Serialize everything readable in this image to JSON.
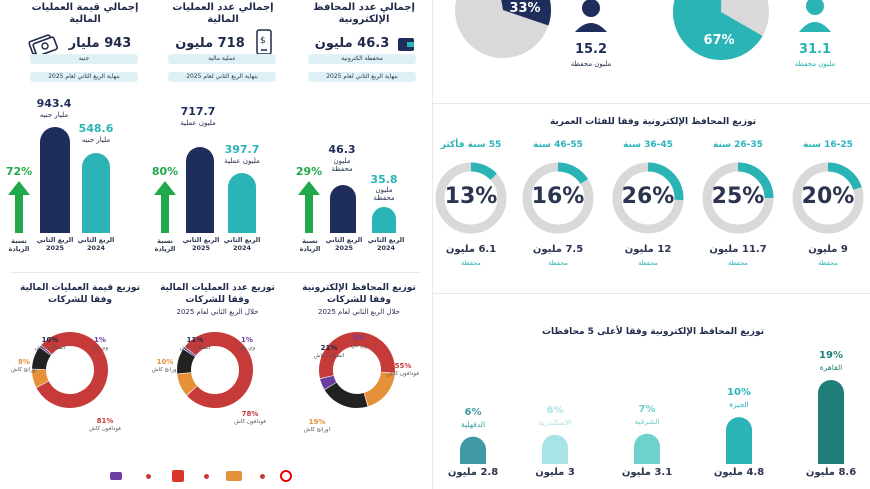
{
  "colors": {
    "navy": "#1f2d5c",
    "teal": "#2bb4b6",
    "green": "#20a84a",
    "red": "#c73a3a",
    "grey": "#d9d9d9",
    "orange": "#e6913a",
    "black": "#222222",
    "purple": "#6a3fa0"
  },
  "left": {
    "kpis": [
      {
        "title": "إجمالي قيمة العمليات المالية",
        "value": "943 مليار",
        "unit": "جنيه",
        "note": "بنهاية الربع الثاني لعام 2025",
        "icon": "money-icon"
      },
      {
        "title": "إجمالي عدد العمليات المالية",
        "value": "718 مليون",
        "unit": "عملية مالية",
        "note": "بنهاية الربع الثاني لعام 2025",
        "icon": "phone-icon"
      },
      {
        "title": "إجمالي عدد المحافظ الإلكترونية",
        "value": "46.3 مليون",
        "unit": "محفظة الكترونية",
        "note": "بنهاية الربع الثاني لعام 2025",
        "icon": "wallet-icon"
      }
    ],
    "growth_label": "نسبة الزيادة",
    "bar_groups": [
      {
        "growth": "72%",
        "q2025_val": "943.4",
        "q2025_unit": "مليار جنيه",
        "q2024_val": "548.6",
        "q2024_unit": "مليار جنيه",
        "q2025_label": "الربع الثاني 2025",
        "q2024_label": "الربع الثاني 2024"
      },
      {
        "growth": "80%",
        "q2025_val": "717.7",
        "q2025_unit": "مليون عملية",
        "q2024_val": "397.7",
        "q2024_unit": "مليون عملية",
        "q2025_label": "الربع الثاني 2025",
        "q2024_label": "الربع الثاني 2024"
      },
      {
        "growth": "29%",
        "q2025_val": "46.3",
        "q2025_unit": "مليون محفظة",
        "q2024_val": "35.8",
        "q2024_unit": "مليون محفظة",
        "q2025_label": "الربع الثاني 2025",
        "q2024_label": "الربع الثاني 2024"
      }
    ],
    "donuts": [
      {
        "title": "توزيع قيمة العمليات المالية وفقا للشركات",
        "subtitle": "",
        "labels": [
          {
            "pct": "81%",
            "name": "فودافون كاش"
          },
          {
            "pct": "8%",
            "name": "اورانج كاش"
          },
          {
            "pct": "10%",
            "name": "اتصالات كاش"
          },
          {
            "pct": "1%",
            "name": "وي باي"
          }
        ]
      },
      {
        "title": "توزيع عدد العمليات المالية وفقا للشركات",
        "subtitle": "خلال الربع الثاني لعام 2025",
        "labels": [
          {
            "pct": "78%",
            "name": "فودافون كاش"
          },
          {
            "pct": "10%",
            "name": "اورانج كاش"
          },
          {
            "pct": "11%",
            "name": "اتصالات كاش"
          },
          {
            "pct": "1%",
            "name": "وي باي"
          }
        ]
      },
      {
        "title": "توزيع المحافظ الإلكترونية وفقا للشركات",
        "subtitle": "خلال الربع الثاني لعام 2025",
        "labels": [
          {
            "pct": "55%",
            "name": "فودافون كاش"
          },
          {
            "pct": "19%",
            "name": "اورانج كاش"
          },
          {
            "pct": "21%",
            "name": "اتصالات كاش"
          },
          {
            "pct": "5%",
            "name": "وي باي"
          }
        ]
      }
    ]
  },
  "right": {
    "top": {
      "male_value": "31.1",
      "male_pct": "67%",
      "female_value": "15.2",
      "female_pct": "33%",
      "unit": "مليون محفظة"
    },
    "age_title": "توزيع المحافظ الإلكترونية وفقا للفئات العمرية",
    "age_groups": [
      {
        "label": "16-25 سنة",
        "pct": "20%",
        "value": "9 مليون",
        "sub": "محفظة"
      },
      {
        "label": "26-35 سنة",
        "pct": "25%",
        "value": "11.7 مليون",
        "sub": "محفظة"
      },
      {
        "label": "36-45 سنة",
        "pct": "26%",
        "value": "12 مليون",
        "sub": "محفظة"
      },
      {
        "label": "46-55 سنة",
        "pct": "16%",
        "value": "7.5 مليون",
        "sub": "محفظة"
      },
      {
        "label": "55 سنة فأكثر",
        "pct": "13%",
        "value": "6.1 مليون",
        "sub": "محفظة"
      }
    ],
    "gov_title": "توزيع المحافظ الإلكترونية وفقا لأعلى 5 محافظات",
    "governorates": [
      {
        "name": "القاهرة",
        "pct": "19%",
        "value": "8.6 مليون"
      },
      {
        "name": "الجيزة",
        "pct": "10%",
        "value": "4.8 مليون"
      },
      {
        "name": "الشرقية",
        "pct": "7%",
        "value": "3.1 مليون"
      },
      {
        "name": "الإسكندرية",
        "pct": "6%",
        "value": "3 مليون"
      },
      {
        "name": "الدقهلية",
        "pct": "6%",
        "value": "2.8 مليون"
      }
    ]
  },
  "chart_data": [
    {
      "type": "bar",
      "title": "",
      "categories": [
        "الربع الثاني 2025",
        "الربع الثاني 2024"
      ],
      "values": [
        943.4,
        548.6
      ],
      "ylabel": "مليار جنيه"
    },
    {
      "type": "bar",
      "title": "",
      "categories": [
        "الربع الثاني 2025",
        "الربع الثاني 2024"
      ],
      "values": [
        717.7,
        397.7
      ],
      "ylabel": "مليون عملية"
    },
    {
      "type": "bar",
      "title": "",
      "categories": [
        "الربع الثاني 2025",
        "الربع الثاني 2024"
      ],
      "values": [
        46.3,
        35.8
      ],
      "ylabel": "مليون محفظة"
    },
    {
      "type": "pie",
      "title": "توزيع قيمة العمليات المالية وفقا للشركات",
      "categories": [
        "فودافون كاش",
        "اورانج كاش",
        "اتصالات كاش",
        "وي باي"
      ],
      "values": [
        81,
        8,
        10,
        1
      ]
    },
    {
      "type": "pie",
      "title": "توزيع عدد العمليات المالية وفقا للشركات",
      "categories": [
        "فودافون كاش",
        "اورانج كاش",
        "اتصالات كاش",
        "وي باي"
      ],
      "values": [
        78,
        10,
        11,
        1
      ]
    },
    {
      "type": "pie",
      "title": "توزيع المحافظ الإلكترونية وفقا للشركات",
      "categories": [
        "فودافون كاش",
        "اورانج كاش",
        "اتصالات كاش",
        "وي باي"
      ],
      "values": [
        55,
        19,
        21,
        5
      ]
    },
    {
      "type": "pie",
      "title": "",
      "categories": [
        "ذكور",
        "إناث"
      ],
      "values": [
        67,
        33
      ]
    },
    {
      "type": "pie",
      "title": "توزيع المحافظ الإلكترونية وفقا للفئات العمرية",
      "categories": [
        "16-25 سنة",
        "26-35 سنة",
        "36-45 سنة",
        "46-55 سنة",
        "55 سنة فأكثر"
      ],
      "values": [
        20,
        25,
        26,
        16,
        13
      ]
    },
    {
      "type": "bar",
      "title": "توزيع المحافظ الإلكترونية وفقا لأعلى 5 محافظات",
      "categories": [
        "القاهرة",
        "الجيزة",
        "الشرقية",
        "الإسكندرية",
        "الدقهلية"
      ],
      "values": [
        8.6,
        4.8,
        3.1,
        3,
        2.8
      ],
      "ylabel": "مليون"
    }
  ]
}
